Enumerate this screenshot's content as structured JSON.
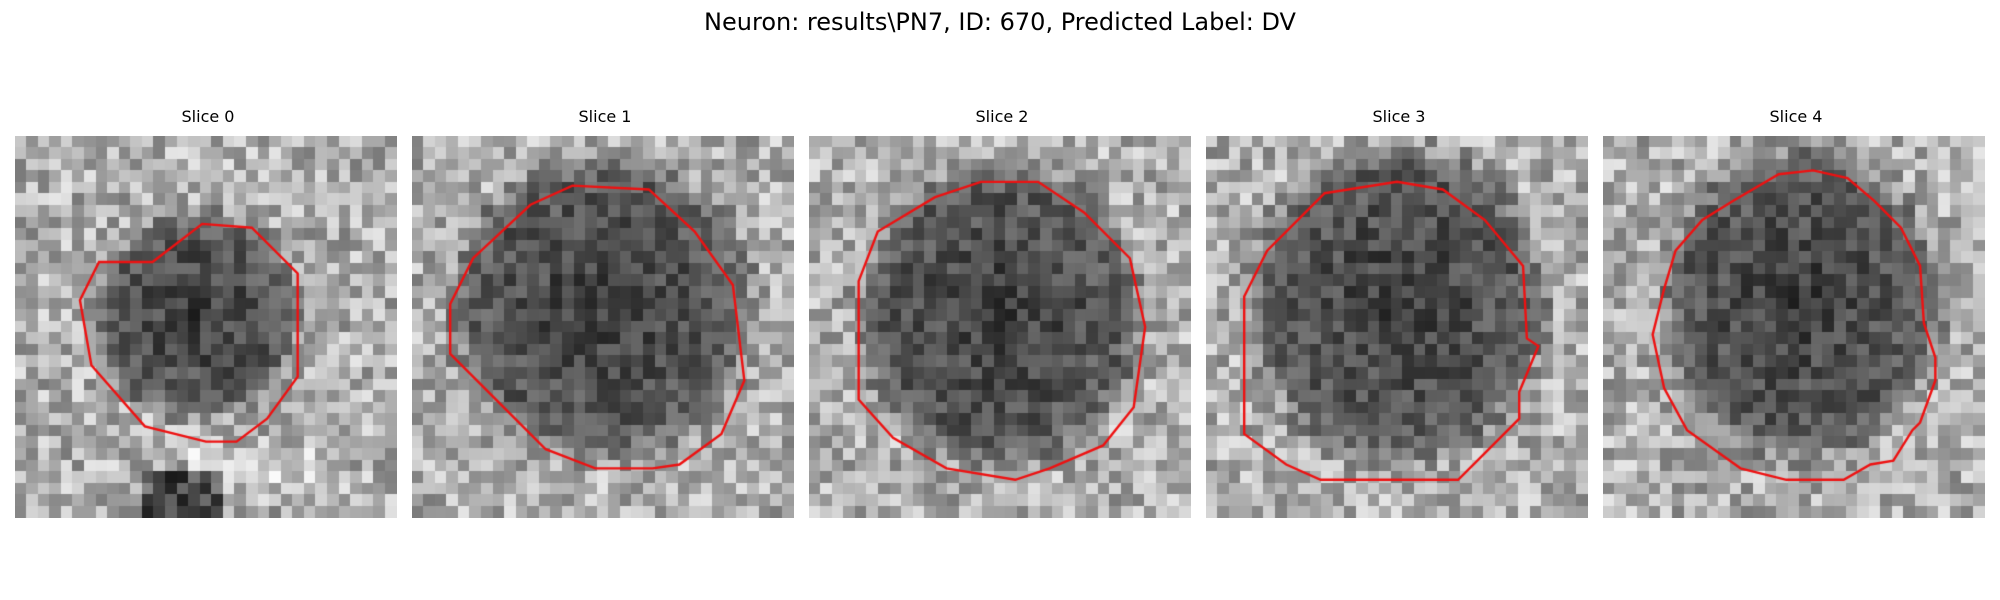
{
  "figure": {
    "title": "Neuron: results\\PN7, ID: 670, Predicted Label: DV"
  },
  "contour_color": "#ee1111",
  "slices": [
    {
      "title": "Slice 0",
      "contour": "red contour around dark cell body",
      "cell_size": "small"
    },
    {
      "title": "Slice 1",
      "contour": "red contour around dark cell body",
      "cell_size": "large"
    },
    {
      "title": "Slice 2",
      "contour": "red contour around dark cell body",
      "cell_size": "large"
    },
    {
      "title": "Slice 3",
      "contour": "red contour around dark cell body",
      "cell_size": "large"
    },
    {
      "title": "Slice 4",
      "contour": "red contour around dark cell body",
      "cell_size": "medium"
    }
  ]
}
